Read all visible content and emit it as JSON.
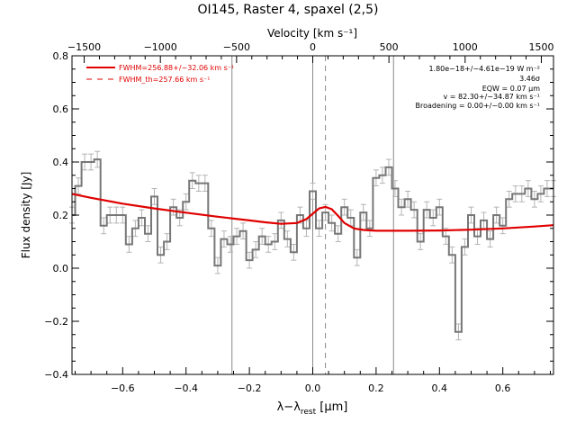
{
  "chart_data": {
    "type": "line",
    "title": "OI145, Raster 4, spaxel (2,5)",
    "top_axis_label": "Velocity [km s⁻¹]",
    "xlabel": "λ−λ",
    "xlabel_sub": "rest",
    "xlabel_unit": " [μm]",
    "ylabel": "Flux density [Jy]",
    "xlim": [
      -0.76,
      0.76
    ],
    "ylim": [
      -0.4,
      0.8
    ],
    "vlim": [
      -1580,
      1580
    ],
    "x_ticks": [
      -0.6,
      -0.4,
      -0.2,
      0.0,
      0.2,
      0.4,
      0.6
    ],
    "x_tick_labels": [
      "−0.6",
      "−0.4",
      "−0.2",
      "0.0",
      "0.2",
      "0.4",
      "0.6"
    ],
    "y_ticks": [
      -0.4,
      -0.2,
      0.0,
      0.2,
      0.4,
      0.6,
      0.8
    ],
    "y_tick_labels": [
      "−0.4",
      "−0.2",
      "0.0",
      "0.2",
      "0.4",
      "0.6",
      "0.8"
    ],
    "v_ticks": [
      -1500,
      -1000,
      -500,
      0,
      500,
      1000,
      1500
    ],
    "v_tick_labels": [
      "−1500",
      "−1000",
      "−500",
      "0",
      "500",
      "1000",
      "1500"
    ],
    "vertical_lines_x": [
      -0.255,
      0.0,
      0.255
    ],
    "dashed_line_x": 0.04,
    "legend": [
      {
        "label": "FWHM=256.88+/−32.06 km s⁻¹",
        "style": "solid",
        "color": "#e00000"
      },
      {
        "label": "FWHM_th=257.66 km s⁻¹",
        "style": "dashed",
        "color": "#e00000"
      }
    ],
    "annotations": [
      "1.80e−18+/−4.61e−19 W m⁻²",
      "3.46σ",
      "EQW = 0.07 μm",
      "v = 82.30+/−34.87 km s⁻¹",
      "Broadening = 0.00+/−0.00 km s⁻¹"
    ],
    "series": [
      {
        "name": "spectrum",
        "style": "step",
        "color": "#777777",
        "x": [
          -0.76,
          -0.74,
          -0.72,
          -0.7,
          -0.68,
          -0.66,
          -0.64,
          -0.62,
          -0.6,
          -0.58,
          -0.56,
          -0.54,
          -0.52,
          -0.5,
          -0.48,
          -0.46,
          -0.44,
          -0.42,
          -0.4,
          -0.38,
          -0.36,
          -0.34,
          -0.32,
          -0.3,
          -0.28,
          -0.26,
          -0.24,
          -0.22,
          -0.2,
          -0.18,
          -0.16,
          -0.14,
          -0.12,
          -0.1,
          -0.08,
          -0.06,
          -0.04,
          -0.02,
          0.0,
          0.02,
          0.04,
          0.06,
          0.08,
          0.1,
          0.12,
          0.14,
          0.16,
          0.18,
          0.2,
          0.22,
          0.24,
          0.26,
          0.28,
          0.3,
          0.32,
          0.34,
          0.36,
          0.38,
          0.4,
          0.42,
          0.44,
          0.46,
          0.48,
          0.5,
          0.52,
          0.54,
          0.56,
          0.58,
          0.6,
          0.62,
          0.64,
          0.66,
          0.68,
          0.7,
          0.72,
          0.74,
          0.76
        ],
        "y": [
          0.2,
          0.31,
          0.4,
          0.4,
          0.41,
          0.16,
          0.2,
          0.2,
          0.2,
          0.09,
          0.15,
          0.19,
          0.13,
          0.27,
          0.05,
          0.1,
          0.23,
          0.19,
          0.25,
          0.33,
          0.32,
          0.32,
          0.15,
          0.01,
          0.11,
          0.09,
          0.12,
          0.14,
          0.03,
          0.07,
          0.12,
          0.09,
          0.1,
          0.18,
          0.11,
          0.06,
          0.2,
          0.15,
          0.29,
          0.15,
          0.21,
          0.17,
          0.13,
          0.23,
          0.19,
          0.04,
          0.21,
          0.15,
          0.34,
          0.35,
          0.38,
          0.3,
          0.23,
          0.26,
          0.22,
          0.1,
          0.22,
          0.19,
          0.23,
          0.12,
          0.05,
          -0.24,
          0.08,
          0.2,
          0.12,
          0.18,
          0.11,
          0.2,
          0.16,
          0.26,
          0.28,
          0.28,
          0.3,
          0.26,
          0.28,
          0.3,
          0.3
        ],
        "err": 0.03
      },
      {
        "name": "fit",
        "style": "solid",
        "color": "#e00000",
        "x": [
          -0.76,
          -0.7,
          -0.6,
          -0.5,
          -0.4,
          -0.3,
          -0.2,
          -0.15,
          -0.1,
          -0.05,
          -0.02,
          0.0,
          0.02,
          0.04,
          0.06,
          0.08,
          0.1,
          0.13,
          0.16,
          0.2,
          0.3,
          0.4,
          0.5,
          0.6,
          0.7,
          0.76
        ],
        "y": [
          0.28,
          0.265,
          0.243,
          0.225,
          0.209,
          0.194,
          0.18,
          0.173,
          0.167,
          0.17,
          0.185,
          0.205,
          0.225,
          0.231,
          0.222,
          0.197,
          0.17,
          0.15,
          0.144,
          0.141,
          0.141,
          0.142,
          0.145,
          0.15,
          0.157,
          0.162
        ]
      }
    ]
  }
}
